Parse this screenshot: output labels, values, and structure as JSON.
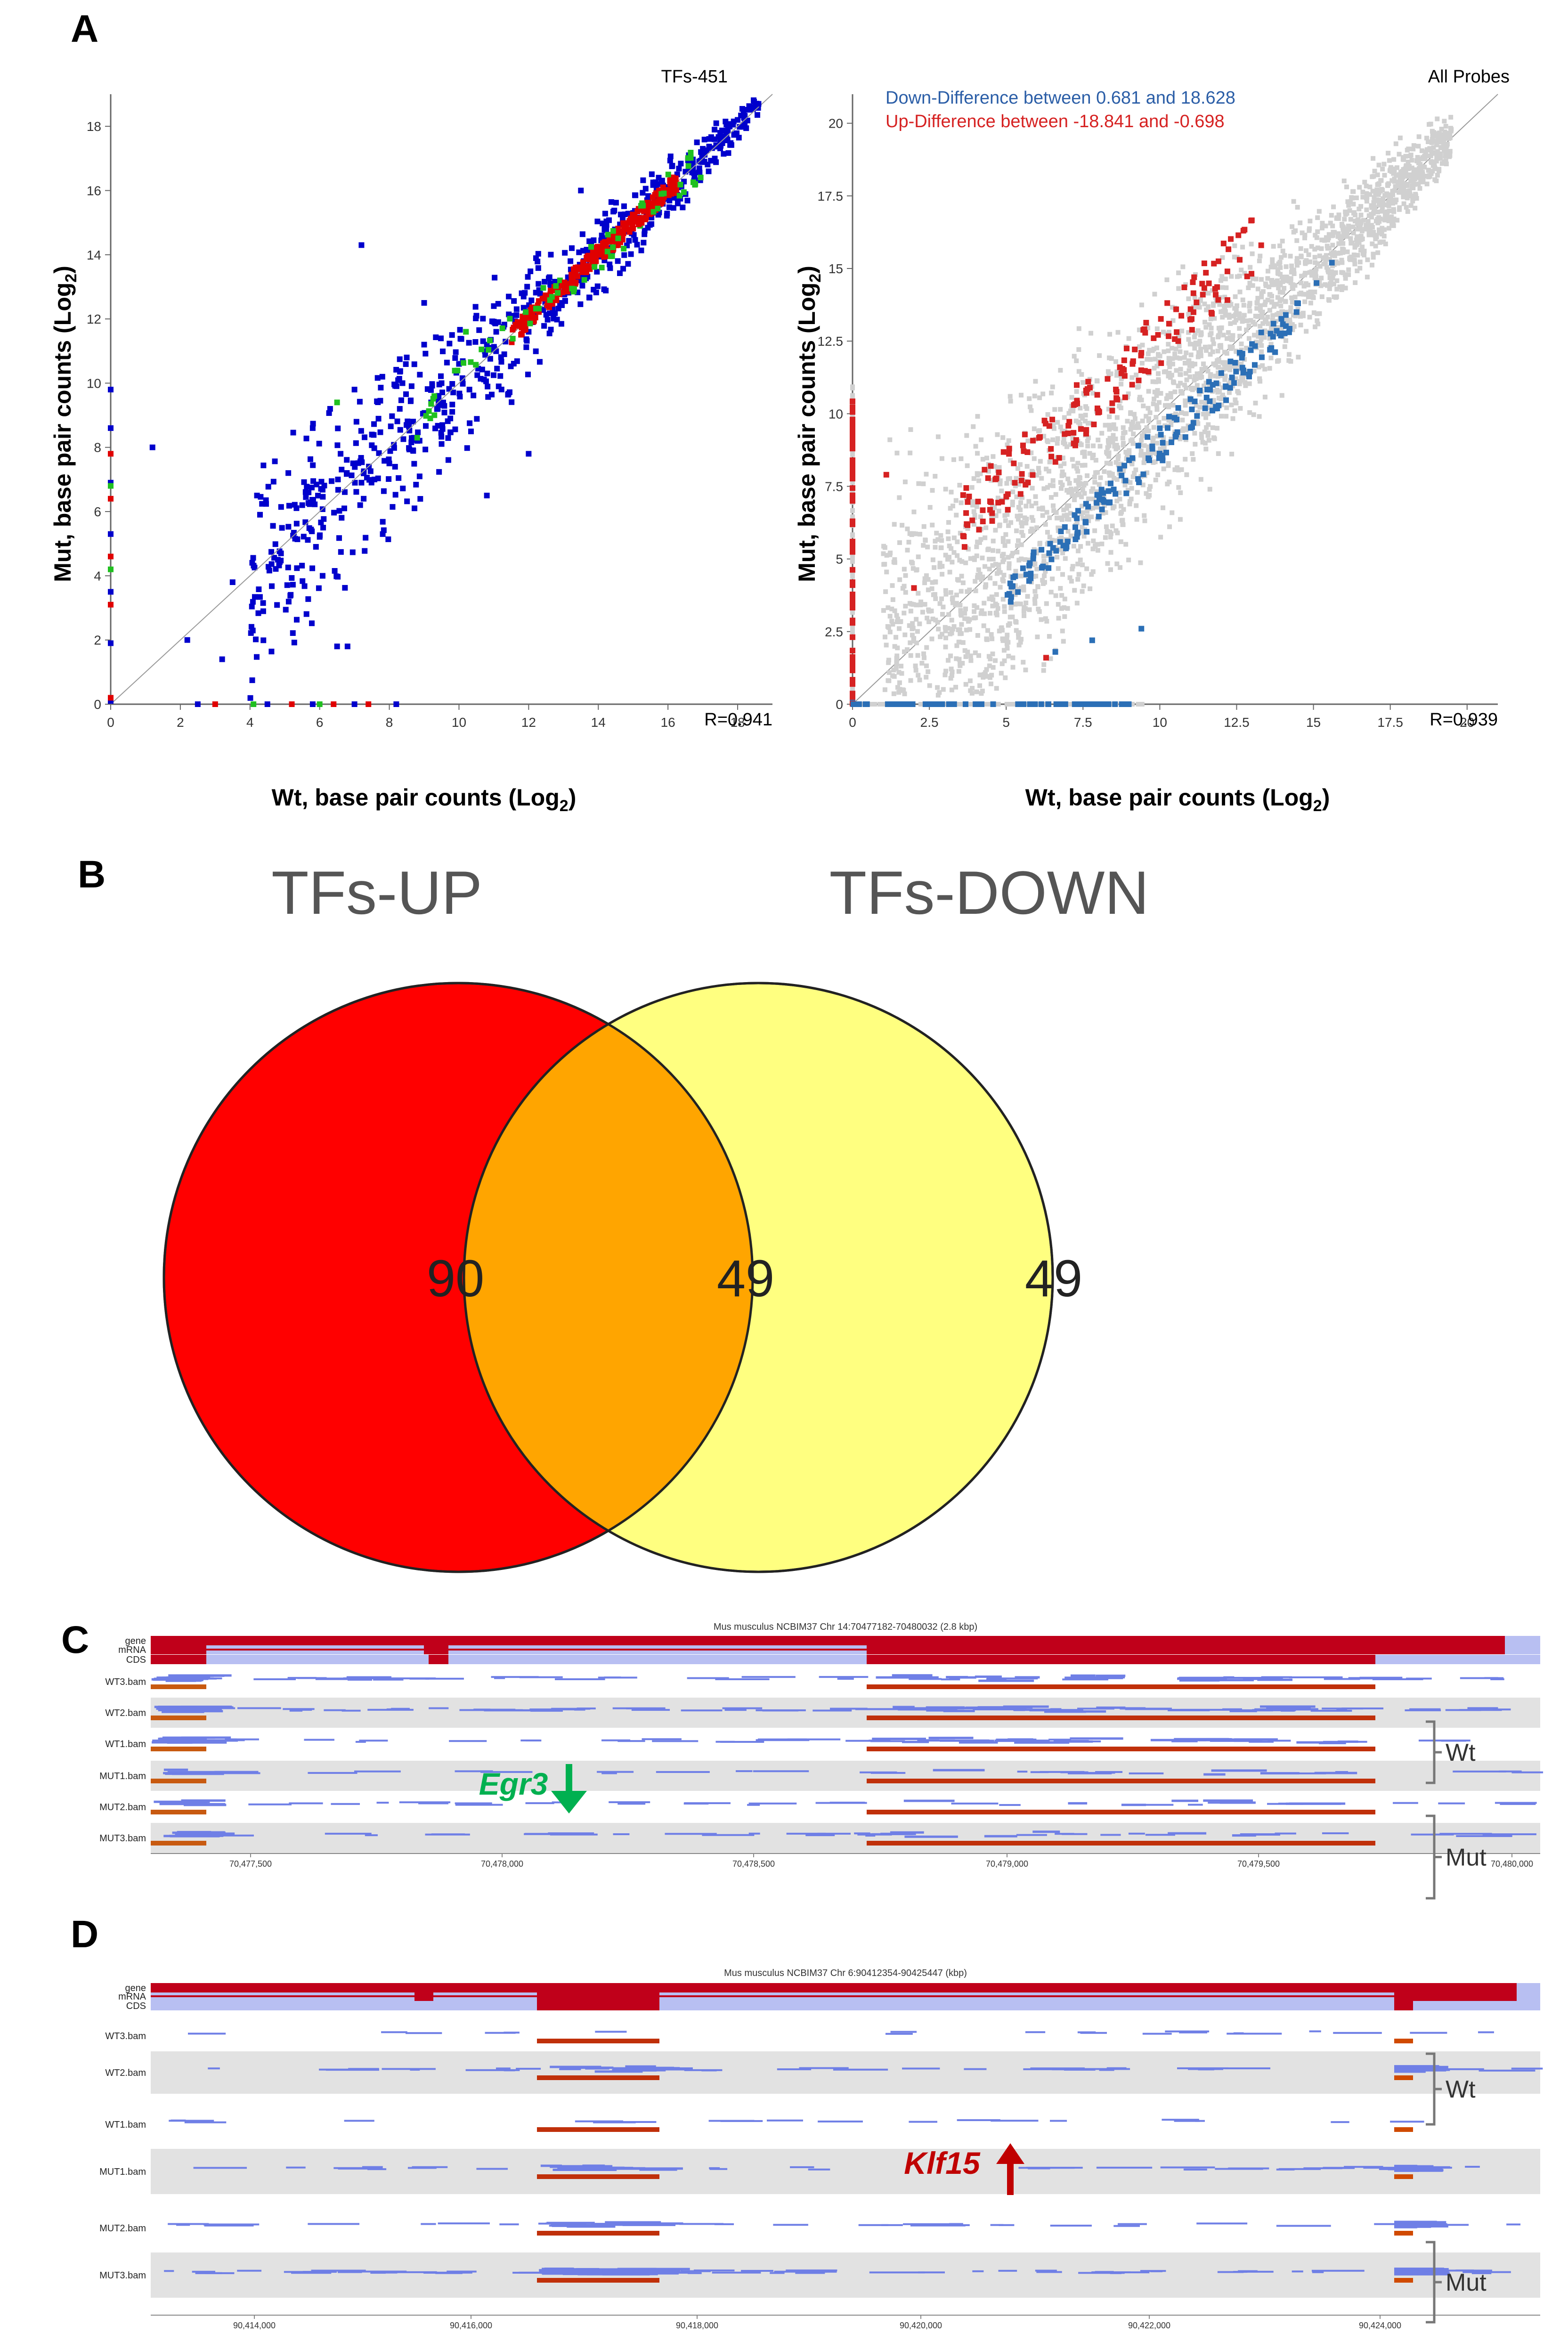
{
  "panels": {
    "a": "A",
    "b": "B",
    "c": "C",
    "d": "D"
  },
  "panel_a": {
    "left": {
      "title": "TFs-451",
      "r_label": "R=0.941",
      "xlabel": "Wt, base pair counts (Log",
      "ylabel": "Mut, base pair counts (Log",
      "sub": "2",
      "close_paren": ")",
      "xticks": [
        "0",
        "2",
        "4",
        "6",
        "8",
        "10",
        "12",
        "14",
        "16",
        "18"
      ],
      "yticks": [
        "0",
        "2",
        "4",
        "6",
        "8",
        "10",
        "12",
        "14",
        "16",
        "18"
      ]
    },
    "right": {
      "title": "All Probes",
      "legend_down": "Down-Difference between 0.681 and 18.628",
      "legend_up": "Up-Difference between -18.841 and -0.698",
      "r_label": "R=0.939",
      "xlabel": "Wt, base pair counts (Log",
      "ylabel": "Mut, base pair counts (Log",
      "sub": "2",
      "close_paren": ")",
      "xticks": [
        "0",
        "2.5",
        "5",
        "7.5",
        "10",
        "12.5",
        "15",
        "17.5",
        "20"
      ],
      "yticks": [
        "0",
        "2.5",
        "5",
        "7.5",
        "10",
        "12.5",
        "15",
        "17.5",
        "20"
      ]
    }
  },
  "chart_data": [
    {
      "type": "scatter",
      "title": "TFs-451",
      "xlabel": "Wt, base pair counts (Log2)",
      "ylabel": "Mut, base pair counts (Log2)",
      "xlim": [
        0,
        19
      ],
      "ylim": [
        0,
        19
      ],
      "r": 0.941,
      "series": [
        {
          "name": "TFs (blue)",
          "points": [
            [
              1.2,
              8
            ],
            [
              2.2,
              2
            ],
            [
              3.2,
              1.4
            ],
            [
              3.5,
              3.8
            ],
            [
              4.2,
              6.5
            ],
            [
              4.8,
              4.5
            ],
            [
              5.1,
              7.2
            ],
            [
              5.5,
              6.2
            ],
            [
              5.8,
              8.6
            ],
            [
              6.1,
              5.5
            ],
            [
              6.3,
              9.2
            ],
            [
              6.6,
              7.8
            ],
            [
              6.8,
              1.8
            ],
            [
              7,
              9.8
            ],
            [
              7.2,
              6.9
            ],
            [
              7.5,
              8.4
            ],
            [
              7.8,
              10.2
            ],
            [
              8,
              7.5
            ],
            [
              8.3,
              9.2
            ],
            [
              8.5,
              10.8
            ],
            [
              8.7,
              8.3
            ],
            [
              9,
              11.2
            ],
            [
              9.2,
              9.4
            ],
            [
              9.5,
              10
            ],
            [
              9.8,
              11.5
            ],
            [
              10,
              10.6
            ],
            [
              10.3,
              9.8
            ],
            [
              10.5,
              12.1
            ],
            [
              10.8,
              11.2
            ],
            [
              11,
              12.4
            ],
            [
              11.3,
              10.9
            ],
            [
              11.5,
              12.1
            ],
            [
              11.8,
              12.8
            ],
            [
              12,
              11.6
            ],
            [
              12.3,
              12.9
            ],
            [
              12.6,
              13.3
            ],
            [
              12.9,
              12.5
            ],
            [
              13.2,
              13.8
            ],
            [
              13.5,
              13.2
            ],
            [
              13.8,
              14.3
            ],
            [
              14.1,
              14.6
            ],
            [
              14.4,
              14.1
            ],
            [
              14.7,
              15.1
            ],
            [
              15,
              15.3
            ],
            [
              15.4,
              15.7
            ],
            [
              15.8,
              16.2
            ],
            [
              16.2,
              16.4
            ],
            [
              16.6,
              17.1
            ],
            [
              17,
              17.3
            ],
            [
              17.5,
              17.8
            ],
            [
              18,
              18.2
            ],
            [
              18.6,
              18.7
            ],
            [
              7.2,
              14.3
            ],
            [
              9,
              12.5
            ],
            [
              12,
              7.8
            ],
            [
              13.5,
              16
            ],
            [
              10.8,
              6.5
            ],
            [
              6.5,
              1.8
            ],
            [
              0,
              9.8
            ],
            [
              0,
              8.6
            ],
            [
              0,
              6.9
            ],
            [
              0,
              5.3
            ],
            [
              0,
              3.5
            ],
            [
              0,
              1.9
            ],
            [
              0,
              0.1
            ],
            [
              2.5,
              0
            ],
            [
              4.5,
              0
            ],
            [
              5.8,
              0
            ],
            [
              7,
              0
            ],
            [
              8.2,
              0
            ]
          ]
        },
        {
          "name": "TFs (red)",
          "points": [
            [
              13.5,
              13.6
            ],
            [
              13.8,
              13.9
            ],
            [
              14,
              14.1
            ],
            [
              14.2,
              14.4
            ],
            [
              14.5,
              14.6
            ],
            [
              14.8,
              14.8
            ],
            [
              15,
              15.1
            ],
            [
              13.2,
              13.1
            ],
            [
              12.8,
              12.9
            ],
            [
              15.4,
              15.4
            ],
            [
              0,
              7.8
            ],
            [
              0,
              6.4
            ],
            [
              0,
              4.6
            ],
            [
              0,
              3.1
            ],
            [
              0,
              0.2
            ],
            [
              3,
              0
            ],
            [
              5.2,
              0
            ],
            [
              6.4,
              0
            ],
            [
              7.4,
              0
            ]
          ]
        },
        {
          "name": "TFs (green)",
          "points": [
            [
              6.5,
              9.4
            ],
            [
              8.8,
              8.3
            ],
            [
              10.2,
              11.6
            ],
            [
              11.9,
              12.1
            ],
            [
              12.9,
              13.2
            ],
            [
              14.1,
              13.6
            ],
            [
              15.2,
              14.9
            ],
            [
              0,
              6.8
            ],
            [
              0,
              4.2
            ],
            [
              4.1,
              0
            ],
            [
              6,
              0
            ]
          ]
        }
      ]
    },
    {
      "type": "scatter",
      "title": "All Probes",
      "xlabel": "Wt, base pair counts (Log2)",
      "ylabel": "Mut, base pair counts (Log2)",
      "xlim": [
        0,
        21
      ],
      "ylim": [
        0,
        21
      ],
      "r": 0.939,
      "legend": [
        "Down-Difference between 0.681 and 18.628",
        "Up-Difference between -18.841 and -0.698"
      ],
      "series": [
        {
          "name": "Down-Difference",
          "color": "#2b6fb6",
          "points": [
            [
              5.1,
              3.8
            ],
            [
              5.8,
              4.5
            ],
            [
              6.4,
              5.2
            ],
            [
              7,
              5.6
            ],
            [
              7.3,
              6.4
            ],
            [
              7.6,
              6.9
            ],
            [
              8,
              7.2
            ],
            [
              8.4,
              7.6
            ],
            [
              8.7,
              8.1
            ],
            [
              9,
              8.4
            ],
            [
              9.3,
              8.9
            ],
            [
              9.6,
              9.2
            ],
            [
              10,
              9.5
            ],
            [
              10.3,
              9.9
            ],
            [
              10.6,
              10.2
            ],
            [
              11,
              10.5
            ],
            [
              11.3,
              10.8
            ],
            [
              11.6,
              11.1
            ],
            [
              12,
              11.4
            ],
            [
              12.3,
              11.8
            ],
            [
              12.6,
              12.1
            ],
            [
              13,
              12.4
            ],
            [
              13.3,
              12.8
            ],
            [
              13.7,
              13.1
            ],
            [
              14.1,
              13.4
            ],
            [
              14.5,
              13.8
            ],
            [
              15.1,
              14.5
            ],
            [
              15.6,
              15.2
            ],
            [
              6.6,
              1.8
            ],
            [
              7.8,
              2.2
            ],
            [
              9.4,
              2.6
            ],
            [
              0,
              0.2
            ],
            [
              1.3,
              0
            ],
            [
              2.7,
              0
            ],
            [
              4.2,
              0
            ],
            [
              5.4,
              0
            ],
            [
              6.8,
              0
            ],
            [
              7.6,
              0
            ],
            [
              8.3,
              0
            ]
          ]
        },
        {
          "name": "Up-Difference",
          "color": "#d62222",
          "points": [
            [
              1.1,
              7.9
            ],
            [
              2,
              4
            ],
            [
              3.6,
              7.2
            ],
            [
              4.5,
              8.2
            ],
            [
              5.1,
              8.8
            ],
            [
              5.5,
              7.7
            ],
            [
              6.1,
              9.2
            ],
            [
              6.5,
              9.8
            ],
            [
              6.9,
              9.3
            ],
            [
              7.2,
              10.3
            ],
            [
              7.6,
              10.8
            ],
            [
              8,
              10.1
            ],
            [
              8.3,
              11.2
            ],
            [
              8.7,
              11.6
            ],
            [
              9.1,
              11
            ],
            [
              9.4,
              12.1
            ],
            [
              9.8,
              12.6
            ],
            [
              10.3,
              13.1
            ],
            [
              10.6,
              12.5
            ],
            [
              11,
              13.6
            ],
            [
              11.4,
              14.1
            ],
            [
              11.8,
              14.3
            ],
            [
              12.2,
              14.9
            ],
            [
              12.6,
              15.3
            ],
            [
              13.3,
              15.8
            ],
            [
              6.3,
              1.6
            ],
            [
              0,
              9.8
            ],
            [
              0,
              8.4
            ],
            [
              0,
              7
            ],
            [
              0,
              5.6
            ],
            [
              0,
              4.2
            ],
            [
              0,
              2.8
            ],
            [
              0,
              1.4
            ]
          ]
        }
      ]
    },
    {
      "type": "venn",
      "sets": [
        "TFs-UP",
        "TFs-DOWN"
      ],
      "values": {
        "TFs-UP only": 90,
        "overlap": 49,
        "TFs-DOWN only": 49
      }
    }
  ],
  "venn": {
    "label_up": "TFs-UP",
    "label_down": "TFs-DOWN",
    "left_only": "90",
    "overlap": "49",
    "right_only": "49"
  },
  "colors": {
    "up": "#ff0000",
    "overlap": "#ffa500",
    "down": "#ffff80",
    "tf_blue": "#0000cc",
    "probe_blue": "#2b6fb6",
    "probe_red": "#d62222",
    "grey": "#d0d0d0",
    "gene_red": "#c0001a",
    "read_blue": "#6f7fe6",
    "green_arrow": "#00b050",
    "red_arrow": "#c00000"
  },
  "panel_c": {
    "title": "Mus musculus NCBIM37 Chr 14:70477182-70480032 (2.8 kbp)",
    "tracks": [
      "gene",
      "mRNA",
      "CDS",
      "WT3.bam",
      "WT2.bam",
      "WT1.bam",
      "MUT1.bam",
      "MUT2.bam",
      "MUT3.bam"
    ],
    "gene_name": "Egr3",
    "group_wt": "Wt",
    "group_mut": "Mut",
    "axis": [
      "70,477,500",
      "70,478,000",
      "70,478,500",
      "70,479,000",
      "70,479,500",
      "70,480,000"
    ]
  },
  "panel_d": {
    "title": "Mus musculus NCBIM37 Chr 6:90412354-90425447 (kbp)",
    "tracks": [
      "gene",
      "mRNA",
      "CDS",
      "WT3.bam",
      "WT2.bam",
      "WT1.bam",
      "MUT1.bam",
      "MUT2.bam",
      "MUT3.bam"
    ],
    "gene_name": "Klf15",
    "group_wt": "Wt",
    "group_mut": "Mut",
    "axis": [
      "90,414,000",
      "90,416,000",
      "90,418,000",
      "90,420,000",
      "90,422,000",
      "90,424,000"
    ]
  }
}
